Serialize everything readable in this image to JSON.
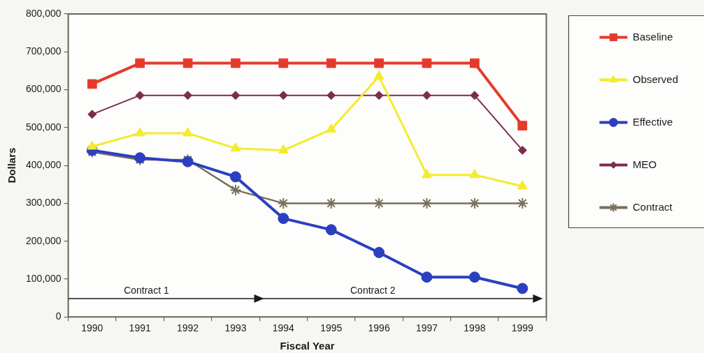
{
  "chart_data": {
    "type": "line",
    "xlabel": "Fiscal Year",
    "ylabel": "Dollars",
    "categories": [
      "1990",
      "1991",
      "1992",
      "1993",
      "1994",
      "1995",
      "1996",
      "1997",
      "1998",
      "1999"
    ],
    "ylim": [
      0,
      800000
    ],
    "yticks": [
      0,
      {
        "value": 100000,
        "label": "100,000"
      },
      {
        "value": 200000,
        "label": "200,000"
      },
      {
        "value": 300000,
        "label": "300,000"
      },
      {
        "value": 400000,
        "label": "400,000"
      },
      {
        "value": 500000,
        "label": "500,000"
      },
      {
        "value": 600000,
        "label": "600,000"
      },
      {
        "value": 700000,
        "label": "700,000"
      },
      {
        "value": 800000,
        "label": "800,000"
      }
    ],
    "grid": false,
    "legend": "right",
    "annotations": [
      "Contract 1",
      "Contract 2"
    ],
    "series": [
      {
        "name": "Baseline",
        "color": "#e53a2b",
        "marker": "square",
        "values": [
          615000,
          670000,
          670000,
          670000,
          670000,
          670000,
          670000,
          670000,
          670000,
          505000
        ]
      },
      {
        "name": "Observed",
        "color": "#f2ec2c",
        "marker": "triangle",
        "values": [
          450000,
          485000,
          485000,
          445000,
          440000,
          495000,
          635000,
          375000,
          375000,
          345000
        ]
      },
      {
        "name": "Effective",
        "color": "#2b3fc0",
        "marker": "circle",
        "values": [
          440000,
          420000,
          410000,
          370000,
          260000,
          230000,
          170000,
          105000,
          105000,
          75000
        ]
      },
      {
        "name": "MEO",
        "color": "#7b2d4e",
        "marker": "diamond",
        "values": [
          535000,
          585000,
          585000,
          585000,
          585000,
          585000,
          585000,
          585000,
          585000,
          440000
        ]
      },
      {
        "name": "Contract",
        "color": "#7a6f58",
        "marker": "cross",
        "values": [
          435000,
          415000,
          415000,
          335000,
          300000,
          300000,
          300000,
          300000,
          300000,
          300000
        ]
      }
    ]
  }
}
